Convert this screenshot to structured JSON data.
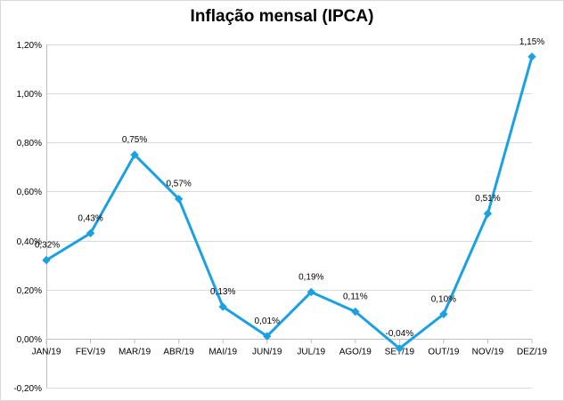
{
  "chart_data": {
    "type": "line",
    "title": "Inflação mensal (IPCA)",
    "xlabel": "",
    "ylabel": "",
    "categories": [
      "JAN/19",
      "FEV/19",
      "MAR/19",
      "ABR/19",
      "MAI/19",
      "JUN/19",
      "JUL/19",
      "AGO/19",
      "SET/19",
      "OUT/19",
      "NOV/19",
      "DEZ/19"
    ],
    "values": [
      0.32,
      0.43,
      0.75,
      0.57,
      0.13,
      0.01,
      0.19,
      0.11,
      -0.04,
      0.1,
      0.51,
      1.15
    ],
    "data_labels": [
      "0,32%",
      "0,43%",
      "0,75%",
      "0,57%",
      "0,13%",
      "0,01%",
      "0,19%",
      "0,11%",
      "-0,04%",
      "0,10%",
      "0,51%",
      "1,15%"
    ],
    "ylim": [
      -0.2,
      1.2
    ],
    "yticks": [
      -0.2,
      0,
      0.2,
      0.4,
      0.6,
      0.8,
      1.0,
      1.2
    ],
    "ytick_labels": [
      "-0,20%",
      "0,00%",
      "0,20%",
      "0,40%",
      "0,60%",
      "0,80%",
      "1,00%",
      "1,20%"
    ],
    "grid": true,
    "legend": "none",
    "line_color": "#1ba1e2",
    "marker": "diamond"
  }
}
